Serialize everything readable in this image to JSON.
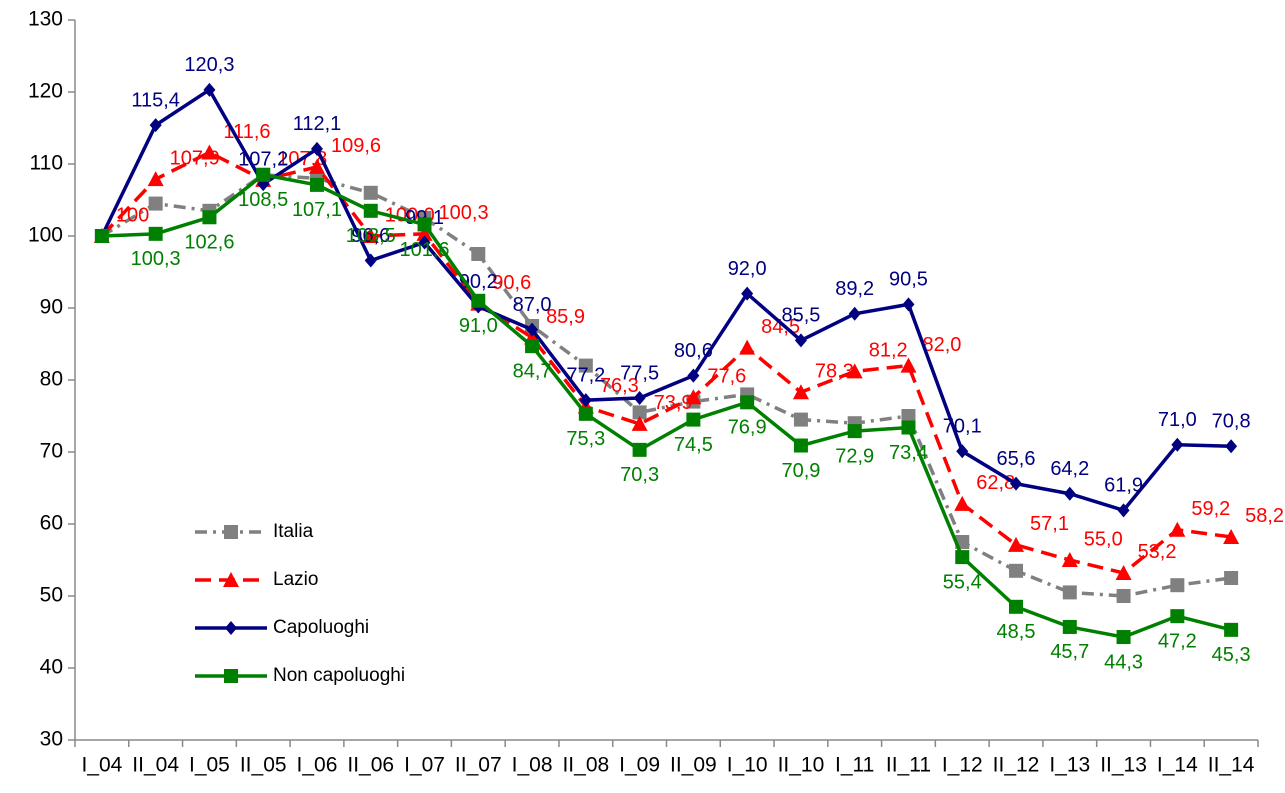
{
  "chart_data": {
    "type": "line",
    "categories": [
      "I_04",
      "II_04",
      "I_05",
      "II_05",
      "I_06",
      "II_06",
      "I_07",
      "II_07",
      "I_08",
      "II_08",
      "I_09",
      "II_09",
      "I_10",
      "II_10",
      "I_11",
      "II_11",
      "I_12",
      "II_12",
      "I_13",
      "II_13",
      "I_14",
      "II_14"
    ],
    "series": [
      {
        "name": "Italia",
        "color": "#808080",
        "marker": "square",
        "dash": "dashdot",
        "values": [
          100,
          104.5,
          103.5,
          108.5,
          108,
          106,
          102.5,
          97.5,
          87.5,
          82,
          75.5,
          77,
          78,
          74.5,
          74,
          75,
          57.5,
          53.5,
          50.5,
          50,
          51.5,
          52.5
        ]
      },
      {
        "name": "Lazio",
        "color": "#ff0000",
        "marker": "triangle",
        "dash": "dash",
        "values": [
          100,
          107.9,
          111.6,
          107.8,
          109.6,
          100.0,
          100.3,
          90.6,
          85.9,
          76.3,
          73.9,
          77.6,
          84.5,
          78.3,
          81.2,
          82.0,
          62.8,
          57.1,
          55.0,
          53.2,
          59.2,
          58.2
        ],
        "value_labels": [
          "100",
          "107,9",
          "111,6",
          "107,8",
          "109,6",
          "100,0",
          "100,3",
          "90,6",
          "85,9",
          "76,3",
          "73,9",
          "77,6",
          "84,5",
          "78,3",
          "81,2",
          "82,0",
          "62,8",
          "57,1",
          "55,0",
          "53,2",
          "59,2",
          "58,2"
        ]
      },
      {
        "name": "Capoluoghi",
        "color": "#000080",
        "marker": "diamond",
        "dash": "solid",
        "values": [
          100,
          115.4,
          120.3,
          107.2,
          112.1,
          96.6,
          99.1,
          90.2,
          87.0,
          77.2,
          77.5,
          80.6,
          92.0,
          85.5,
          89.2,
          90.5,
          70.1,
          65.6,
          64.2,
          61.9,
          71.0,
          70.8
        ],
        "value_labels": [
          null,
          "115,4",
          "120,3",
          "107,2",
          "112,1",
          "96,6",
          "99,1",
          "90,2",
          "87,0",
          "77,2",
          "77,5",
          "80,6",
          "92,0",
          "85,5",
          "89,2",
          "90,5",
          "70,1",
          "65,6",
          "64,2",
          "61,9",
          "71,0",
          "70,8"
        ]
      },
      {
        "name": "Non capoluoghi",
        "color": "#008000",
        "marker": "square",
        "dash": "solid",
        "values": [
          100,
          100.3,
          102.6,
          108.5,
          107.1,
          103.5,
          101.6,
          91.0,
          84.7,
          75.3,
          70.3,
          74.5,
          76.9,
          70.9,
          72.9,
          73.4,
          55.4,
          48.5,
          45.7,
          44.3,
          47.2,
          45.3
        ],
        "value_labels": [
          null,
          "100,3",
          "102,6",
          "108,5",
          "107,1",
          "103,5",
          "101,6",
          "91,0",
          "84,7",
          "75,3",
          "70,3",
          "74,5",
          "76,9",
          "70,9",
          "72,9",
          "73,4",
          "55,4",
          "48,5",
          "45,7",
          "44,3",
          "47,2",
          "45,3"
        ]
      }
    ],
    "ylim": [
      30,
      130
    ],
    "yticks": [
      30,
      40,
      50,
      60,
      70,
      80,
      90,
      100,
      110,
      120,
      130
    ],
    "grid": false,
    "legend": "lower left"
  }
}
